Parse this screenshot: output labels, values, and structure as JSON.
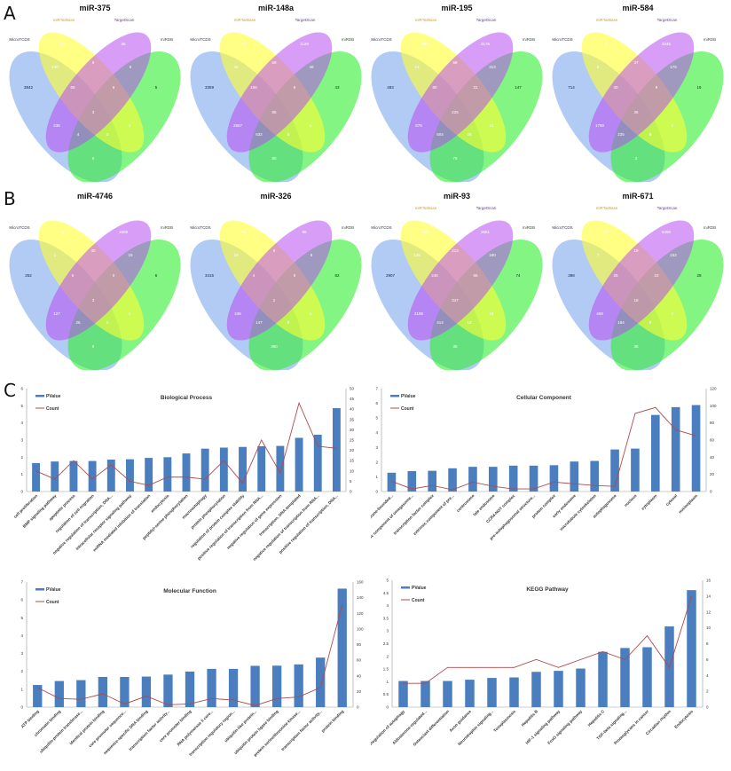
{
  "figure": {
    "letters": [
      "A",
      "B",
      "C"
    ]
  },
  "venn_sets": [
    "MicroTCDS",
    "miRTarBase",
    "TargetScan",
    "miRDB"
  ],
  "venn_colors": {
    "MicroTCDS": "#7fa8ee",
    "miRTarBase": "#ffff30",
    "TargetScan": "#b84cf0",
    "miRDB": "#30ee30"
  },
  "venns": [
    {
      "title": "miR-375",
      "show_top_labels": true,
      "regions": {
        "B": 3842,
        "Y": 231,
        "P": 38,
        "G": 5,
        "BY": 130,
        "YP": 9,
        "PG": 6,
        "BYP": 65,
        "YPG": 6,
        "BYPG": 3,
        "BP": 236,
        "BPG": 4,
        "BYG": 3,
        "YG": 1,
        "BG": 6
      }
    },
    {
      "title": "miR-148a",
      "show_top_labels": true,
      "regions": {
        "B": 3359,
        "Y": 76,
        "P": 1129,
        "G": 43,
        "BY": 46,
        "YP": 59,
        "PG": 46,
        "BYP": 106,
        "YPG": 5,
        "BYPG": 85,
        "BP": 2557,
        "BPG": 632,
        "BYG": 8,
        "YG": 1,
        "BG": 80
      }
    },
    {
      "title": "miR-195",
      "show_top_labels": true,
      "regions": {
        "B": 483,
        "Y": 150,
        "P": 3176,
        "G": 147,
        "BY": 13,
        "YP": 58,
        "PG": 313,
        "BYP": 80,
        "YPG": 31,
        "BYPG": 225,
        "BP": 878,
        "BPG": 504,
        "BYG": 28,
        "YG": 11,
        "BG": 79
      }
    },
    {
      "title": "miR-584",
      "show_top_labels": true,
      "regions": {
        "B": 714,
        "Y": 7,
        "P": 3245,
        "G": 16,
        "BY": 8,
        "YP": 37,
        "PG": 176,
        "BYP": 40,
        "YPG": 9,
        "BYPG": 36,
        "BP": 1790,
        "BPG": 225,
        "BYG": 8,
        "YG": 2,
        "BG": 3
      }
    },
    {
      "title": "miR-4746",
      "show_top_labels": false,
      "regions": {
        "B": 252,
        "Y": 2,
        "P": 1509,
        "G": 6,
        "BY": 1,
        "YP": 30,
        "PG": 15,
        "BYP": 6,
        "YPG": 0,
        "BYPG": 3,
        "BP": 127,
        "BPG": 26,
        "BYG": 9,
        "YG": 1,
        "BG": 9
      }
    },
    {
      "title": "miR-326",
      "show_top_labels": false,
      "regions": {
        "B": 3415,
        "Y": 91,
        "P": 96,
        "G": 82,
        "BY": 19,
        "YP": 9,
        "PG": 8,
        "BYP": 4,
        "YPG": 6,
        "BYPG": 2,
        "BP": 246,
        "BPG": 147,
        "BYG": 9,
        "YG": 1,
        "BG": 360
      }
    },
    {
      "title": "miR-93",
      "show_top_labels": true,
      "regions": {
        "B": 2907,
        "Y": 418,
        "P": 2651,
        "G": 74,
        "BY": 139,
        "YP": 213,
        "PG": 180,
        "BYP": 246,
        "YPG": 66,
        "BYPG": 347,
        "BP": 2195,
        "BPG": 414,
        "BYG": 13,
        "YG": 15,
        "BG": 35
      }
    },
    {
      "title": "miR-671",
      "show_top_labels": true,
      "regions": {
        "B": 398,
        "Y": 27,
        "P": 5490,
        "G": 28,
        "BY": 7,
        "YP": 19,
        "PG": 162,
        "BYP": 25,
        "YPG": 22,
        "BYPG": 18,
        "BP": 469,
        "BPG": 184,
        "BYG": 8,
        "YG": 2,
        "BG": 36
      }
    }
  ],
  "legend": {
    "bar": "PValue",
    "line": "Count"
  },
  "colors": {
    "bar": "#4a7ebf",
    "line": "#b04a4a"
  },
  "chart_data": [
    {
      "type": "bar",
      "title": "Biological Process",
      "ylim": [
        0,
        6
      ],
      "yticks": [
        0,
        1,
        2,
        3,
        4,
        5,
        6
      ],
      "y2lim": [
        0,
        50
      ],
      "y2ticks": [
        0,
        5,
        10,
        15,
        20,
        25,
        30,
        35,
        40,
        45,
        50
      ],
      "categories": [
        "cell proliferation",
        "BMP signaling pathway",
        "apoptotic process",
        "regulation of cell migration",
        "negative regulation of transcription, DNA...",
        "intracellular receptor signaling pathway",
        "miRNA mediated inhibition of translation",
        "endocytosis",
        "peptidyl-serine phosphorylation",
        "macroautophagy",
        "protein phosphorylation",
        "regulation of protein complex stability",
        "positive regulation of transcription from RNA...",
        "negative regulation of gene expression",
        "transcription, DNA-templated",
        "negative regulation of transcription from RNA...",
        "positive regulation of transcription, DNA..."
      ],
      "series": [
        {
          "name": "PValue",
          "axis": "left",
          "values": [
            1.66,
            1.75,
            1.78,
            1.78,
            1.86,
            1.88,
            1.96,
            2.0,
            2.22,
            2.5,
            2.56,
            2.6,
            2.64,
            2.66,
            3.13,
            3.31,
            4.86
          ]
        },
        {
          "name": "Count",
          "axis": "right",
          "values": [
            10,
            6,
            15,
            6,
            13,
            5,
            3,
            7,
            7,
            6,
            15,
            4,
            25,
            9,
            43,
            22,
            21
          ]
        }
      ]
    },
    {
      "type": "bar",
      "title": "Cellular Component",
      "ylim": [
        0,
        7
      ],
      "yticks": [
        0,
        1,
        2,
        3,
        4,
        5,
        6,
        7
      ],
      "y2lim": [
        0,
        120
      ],
      "y2ticks": [
        0,
        20,
        40,
        60,
        80,
        100,
        120
      ],
      "categories": [
        "intracellular membrane-bounded...",
        "extrinsic component of omegasome...",
        "transcription factor complex",
        "extrinsic component of pre...",
        "centrosome",
        "late endosome",
        "CCR4-NOT complex",
        "pre-autophagosomal structure...",
        "protein complex",
        "early endosome",
        "microtubule cytoskeleton",
        "autophagosome",
        "nucleus",
        "cytoplasm",
        "cytosol",
        "nucleoplasm"
      ],
      "series": [
        {
          "name": "PValue",
          "axis": "left",
          "values": [
            1.28,
            1.39,
            1.41,
            1.58,
            1.68,
            1.68,
            1.76,
            1.76,
            1.79,
            2.04,
            2.08,
            2.86,
            2.92,
            5.21,
            5.74,
            5.88
          ]
        },
        {
          "name": "Count",
          "axis": "right",
          "values": [
            12,
            3,
            7,
            2,
            11,
            6,
            3,
            3,
            11,
            9,
            7,
            6,
            91,
            98,
            72,
            65
          ]
        }
      ]
    },
    {
      "type": "bar",
      "title": "Molecular Function",
      "ylim": [
        0,
        7
      ],
      "yticks": [
        0,
        1,
        2,
        3,
        4,
        5,
        6,
        7
      ],
      "y2lim": [
        0,
        160
      ],
      "y2ticks": [
        0,
        20,
        40,
        60,
        80,
        100,
        120,
        140,
        160
      ],
      "categories": [
        "ATP binding",
        "chromatin binding",
        "ubiquitin-protein transferase...",
        "identical protein binding",
        "core promoter sequence...",
        "sequence-specific DNA binding",
        "transcription factor activity...",
        "core promoter binding",
        "RNA polymerase II core...",
        "transcription regulatory region...",
        "ubiquitin-like protein...",
        "ubiquitin protein ligase binding",
        "protein serine/threonine kinase...",
        "transcription factor activity...",
        "protein binding"
      ],
      "series": [
        {
          "name": "PValue",
          "axis": "left",
          "values": [
            1.24,
            1.46,
            1.51,
            1.69,
            1.69,
            1.71,
            1.82,
            1.99,
            2.14,
            2.14,
            2.31,
            2.32,
            2.39,
            2.77,
            6.63
          ]
        },
        {
          "name": "Count",
          "axis": "right",
          "values": [
            25,
            11,
            10,
            17,
            4,
            14,
            3,
            4,
            11,
            9,
            2,
            11,
            13,
            25,
            131
          ]
        }
      ]
    },
    {
      "type": "bar",
      "title": "KEGG Pathway",
      "ylim": [
        0,
        5
      ],
      "yticks": [
        0,
        0.5,
        1,
        1.5,
        2,
        2.5,
        3,
        3.5,
        4,
        4.5,
        5
      ],
      "y2lim": [
        0,
        16
      ],
      "y2ticks": [
        0,
        2,
        4,
        6,
        8,
        10,
        12,
        14,
        16
      ],
      "categories": [
        "Regulation of autophagy",
        "Aldosterone-regulated...",
        "Osteoclast differentiation",
        "Axon guidance",
        "Neurotrophin signaling...",
        "Toxoplasmosis",
        "Hepatitis B",
        "HIF-1 signaling pathway",
        "FoxO signaling pathway",
        "Hepatitis C",
        "TGF-beta signaling...",
        "Proteoglycans in cancer",
        "Circadian rhythm",
        "Endocytosis"
      ],
      "series": [
        {
          "name": "PValue",
          "axis": "left",
          "values": [
            1.03,
            1.03,
            1.03,
            1.08,
            1.15,
            1.17,
            1.39,
            1.43,
            1.52,
            2.18,
            2.33,
            2.36,
            3.18,
            4.61
          ]
        },
        {
          "name": "Count",
          "axis": "right",
          "values": [
            3,
            3,
            5,
            5,
            5,
            5,
            6,
            5,
            6,
            7,
            6,
            9,
            5,
            14
          ]
        }
      ]
    }
  ]
}
